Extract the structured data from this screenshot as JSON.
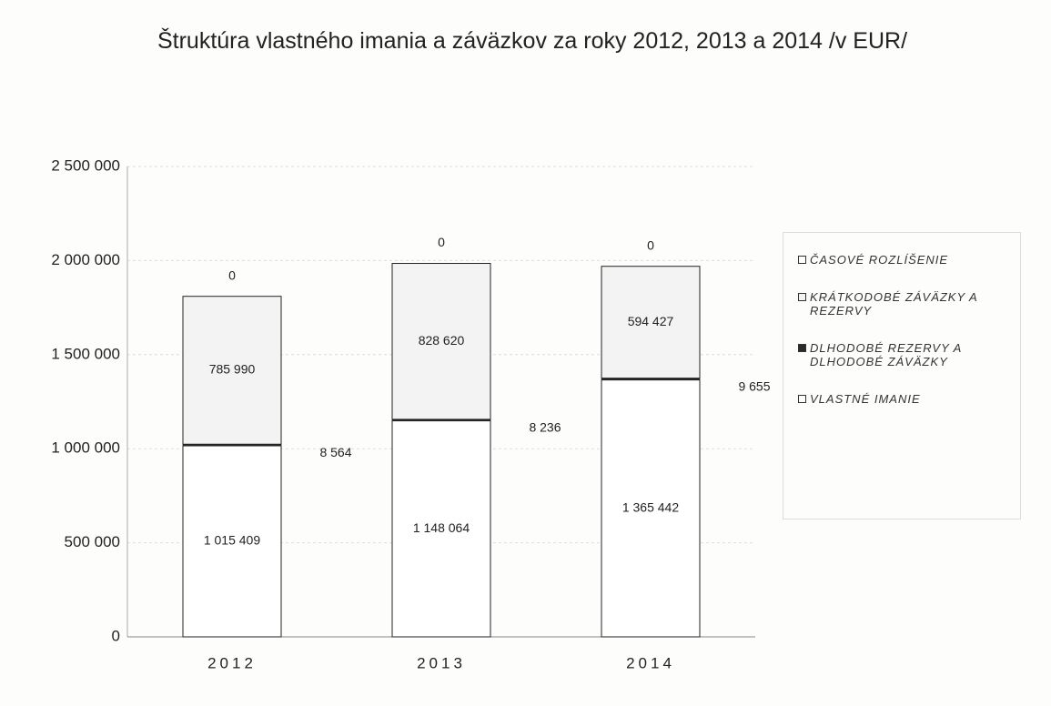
{
  "chart_data": {
    "type": "stacked_bar",
    "title": "Štruktúra vlastného imania a záväzkov za roky 2012, 2013 a 2014 /v EUR/",
    "categories": [
      "2012",
      "2013",
      "2014"
    ],
    "series": [
      {
        "name": "VLASTNÉ IMANIE",
        "color": "#ffffff",
        "values": [
          1015409,
          1148064,
          1365442
        ],
        "value_labels": [
          "1 015 409",
          "1 148 064",
          "1 365 442"
        ]
      },
      {
        "name": "DLHODOBÉ REZERVY A DLHODOBÉ ZÁVÄZKY",
        "color": "#2a2a2a",
        "values": [
          8564,
          8236,
          9655
        ],
        "value_labels": [
          "8 564",
          "8 236",
          "9 655"
        ]
      },
      {
        "name": "KRÁTKODOBÉ ZÁVÄZKY A REZERVY",
        "color": "#f3f3f3",
        "values": [
          785990,
          828620,
          594427
        ],
        "value_labels": [
          "785 990",
          "828 620",
          "594 427"
        ]
      },
      {
        "name": "ČASOVÉ ROZLÍŠENIE",
        "color": "#ffffff",
        "values": [
          0,
          0,
          0
        ]
      }
    ],
    "ylim": [
      0,
      2500000
    ],
    "yticks": [
      0,
      {
        "value": 500000,
        "label": "500 000"
      },
      {
        "value": 1000000,
        "label": "1 000 000"
      },
      {
        "value": 1500000,
        "label": "1 500 000"
      },
      {
        "value": 2000000,
        "label": "2 000 000"
      },
      {
        "value": 2500000,
        "label": "2 500 000"
      }
    ],
    "grid": true,
    "legend": "right"
  }
}
